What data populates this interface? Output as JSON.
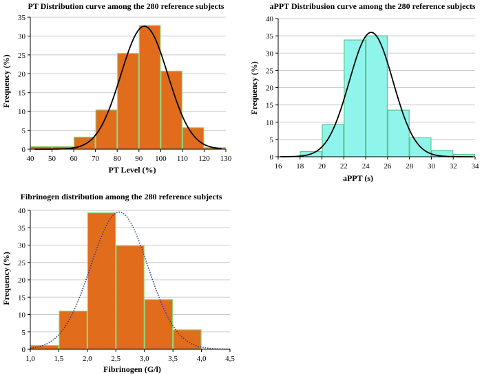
{
  "chart_data": [
    {
      "type": "bar",
      "title": "PT Distribution curve among the 280 reference subjects",
      "xlabel": "PT Level (%)",
      "ylabel": "Frequency (%)",
      "xlim": [
        40,
        130
      ],
      "ylim": [
        0,
        35
      ],
      "xticks": [
        "40",
        "50",
        "60",
        "70",
        "80",
        "90",
        "100",
        "110",
        "120",
        "130"
      ],
      "yticks": [
        "0",
        "5",
        "10",
        "15",
        "20",
        "25",
        "30",
        "35"
      ],
      "bins": [
        {
          "x0": 40,
          "x1": 50,
          "value": 0.7
        },
        {
          "x0": 50,
          "x1": 60,
          "value": 0.7
        },
        {
          "x0": 60,
          "x1": 70,
          "value": 3.2
        },
        {
          "x0": 70,
          "x1": 80,
          "value": 10.4
        },
        {
          "x0": 80,
          "x1": 90,
          "value": 25.4
        },
        {
          "x0": 90,
          "x1": 100,
          "value": 32.8
        },
        {
          "x0": 100,
          "x1": 110,
          "value": 20.7
        },
        {
          "x0": 110,
          "x1": 120,
          "value": 5.7
        },
        {
          "x0": 120,
          "x1": 130,
          "value": 0.4
        }
      ],
      "curve": {
        "mean": 92.5,
        "sd": 10.8,
        "peak": 32.6,
        "x_start": 42,
        "x_end": 128
      },
      "bar_color": "#e06c1c",
      "bar_stroke": "#8fd67a",
      "curve_color": "#000000",
      "curve_style": "solid",
      "grid": true
    },
    {
      "type": "bar",
      "title": "aPPT Distribusion curve among the 280 reference subjects",
      "xlabel": "aPPT (s)",
      "ylabel": "Frequency (%)",
      "xlim": [
        16,
        34
      ],
      "ylim": [
        0,
        40
      ],
      "xticks": [
        "16",
        "18",
        "20",
        "22",
        "24",
        "26",
        "28",
        "30",
        "32",
        "34"
      ],
      "yticks": [
        "0",
        "5",
        "10",
        "15",
        "20",
        "25",
        "30",
        "35",
        "40"
      ],
      "bins": [
        {
          "x0": 18,
          "x1": 20,
          "value": 1.5
        },
        {
          "x0": 20,
          "x1": 22,
          "value": 9.3
        },
        {
          "x0": 22,
          "x1": 24,
          "value": 33.8
        },
        {
          "x0": 24,
          "x1": 26,
          "value": 35.0
        },
        {
          "x0": 26,
          "x1": 28,
          "value": 13.5
        },
        {
          "x0": 28,
          "x1": 30,
          "value": 5.5
        },
        {
          "x0": 30,
          "x1": 32,
          "value": 1.8
        },
        {
          "x0": 32,
          "x1": 34,
          "value": 0.7
        }
      ],
      "curve": {
        "mean": 24.5,
        "sd": 2.0,
        "peak": 36.0,
        "x_start": 16.2,
        "x_end": 33.8
      },
      "bar_color": "#8ff5ec",
      "bar_stroke": "#5cc48a",
      "curve_color": "#000000",
      "curve_style": "solid",
      "grid": true
    },
    {
      "type": "bar",
      "title": "Fibrinogen distribution among the 280 reference subjects",
      "xlabel": "Fibrinogen (G/l)",
      "ylabel": "Frequency (%)",
      "xlim": [
        1.0,
        4.5
      ],
      "ylim": [
        0,
        40
      ],
      "xticks": [
        "1,0",
        "1,5",
        "2,0",
        "2,5",
        "3,0",
        "3,5",
        "4,0",
        "4,5"
      ],
      "yticks": [
        "0",
        "5",
        "10",
        "15",
        "20",
        "25",
        "30",
        "35",
        "40"
      ],
      "bins": [
        {
          "x0": 1.0,
          "x1": 1.5,
          "value": 1.1
        },
        {
          "x0": 1.5,
          "x1": 2.0,
          "value": 11.0
        },
        {
          "x0": 2.0,
          "x1": 2.5,
          "value": 39.3
        },
        {
          "x0": 2.5,
          "x1": 3.0,
          "value": 29.8
        },
        {
          "x0": 3.0,
          "x1": 3.5,
          "value": 14.3
        },
        {
          "x0": 3.5,
          "x1": 4.0,
          "value": 5.6
        }
      ],
      "curve": {
        "mean": 2.56,
        "sd": 0.5,
        "peak": 39.5,
        "x_start": 1.0,
        "x_end": 4.5
      },
      "bar_color": "#e06c1c",
      "bar_stroke": "#8fd67a",
      "curve_color": "#2b3d8f",
      "curve_style": "dotted",
      "grid": true
    }
  ]
}
